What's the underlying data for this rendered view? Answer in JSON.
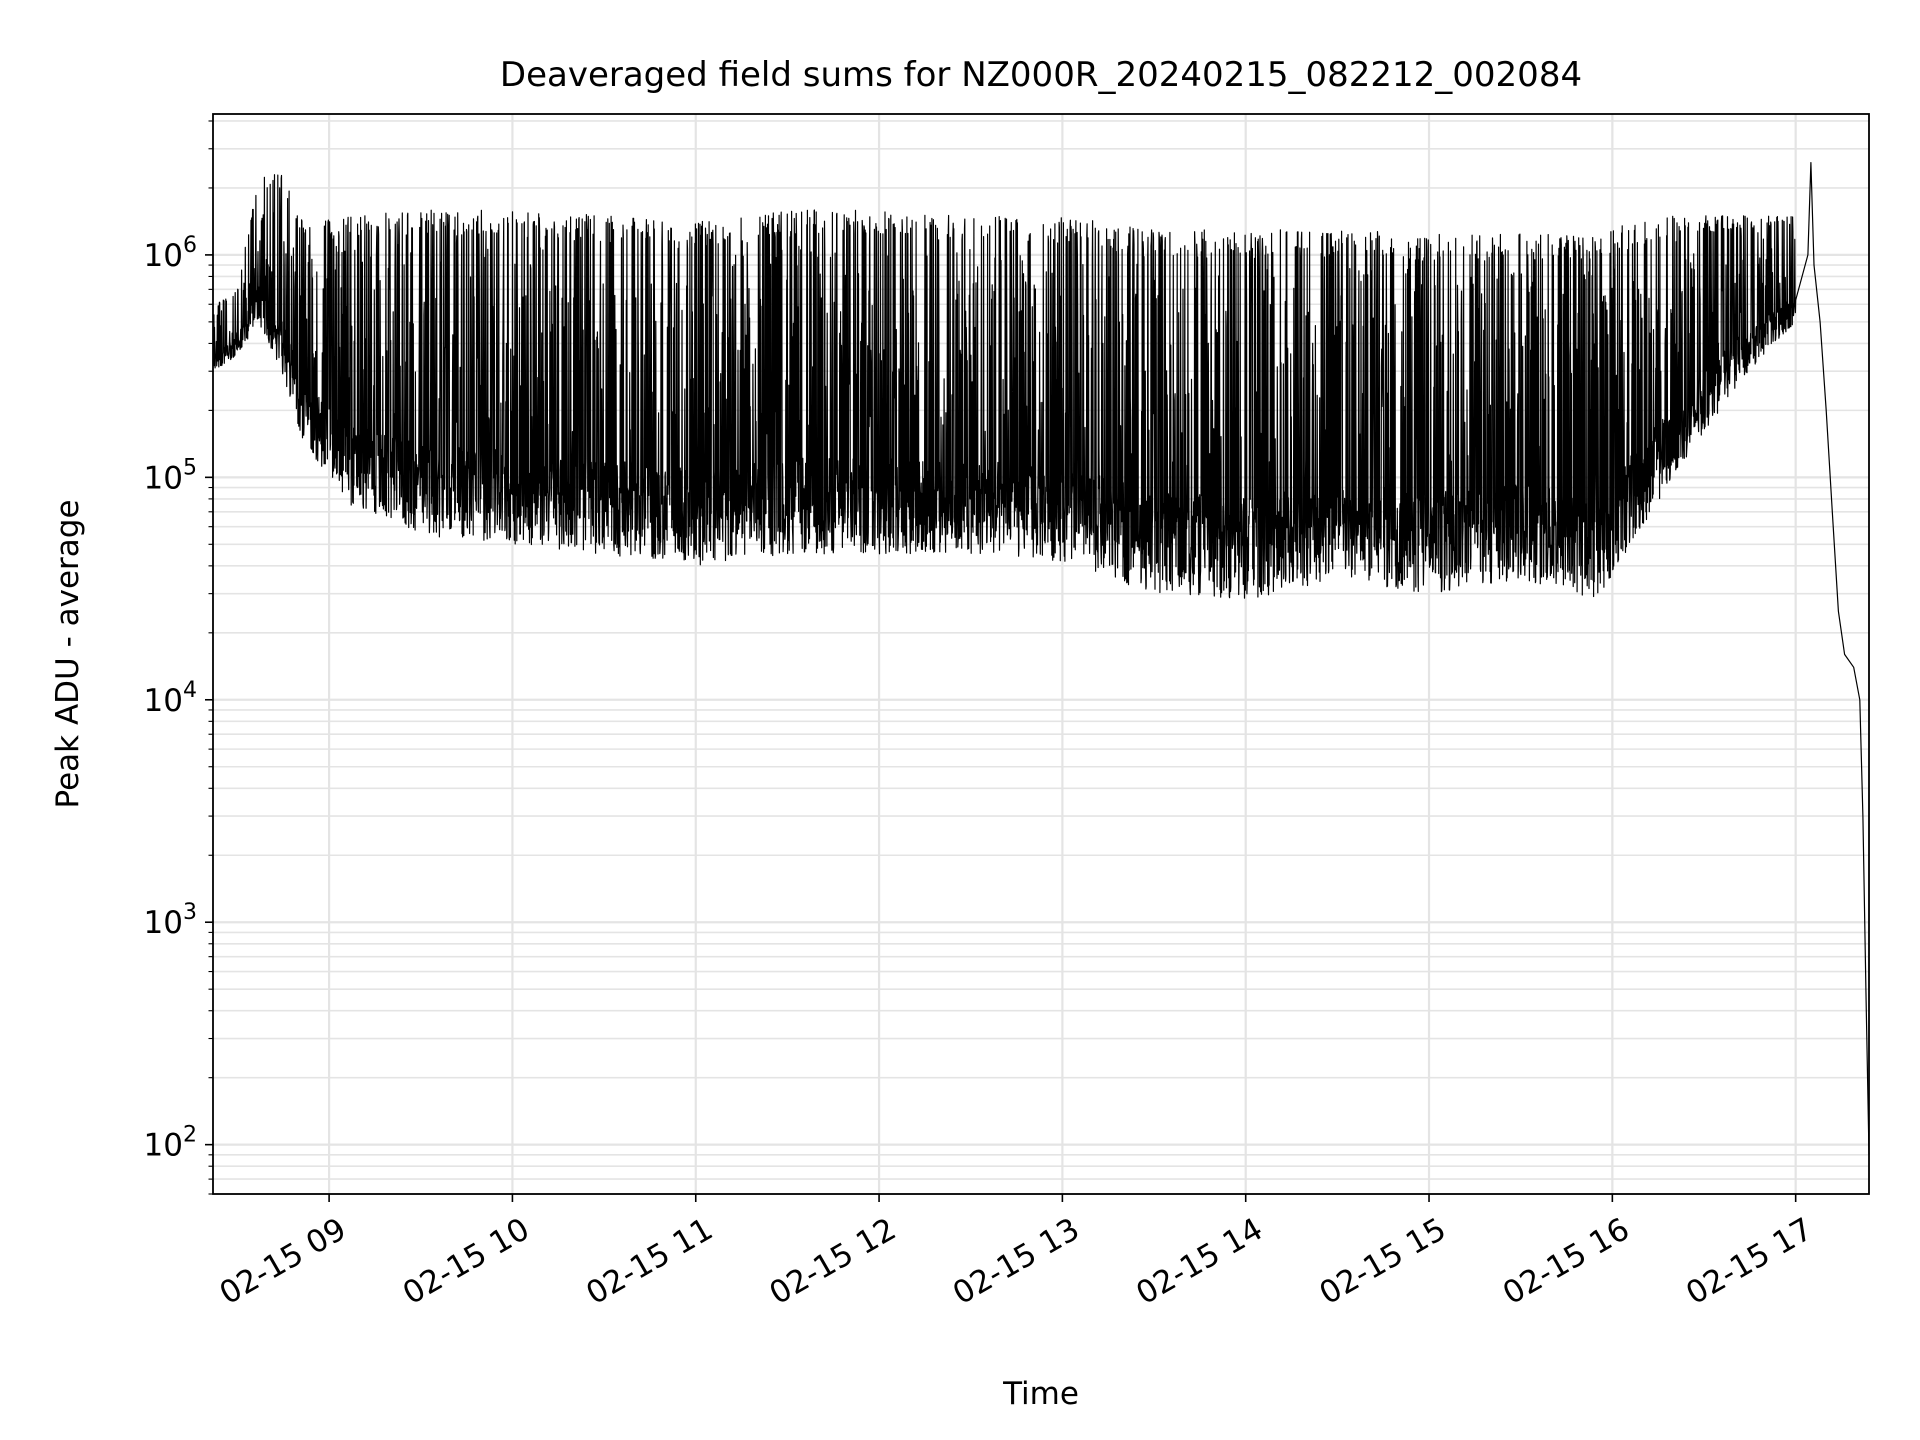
{
  "chart_data": {
    "type": "line",
    "title": "Deaveraged field sums for NZ000R_20240215_082212_002084",
    "xlabel": "Time",
    "ylabel": "Peak ADU - average",
    "yscale": "log",
    "xlim": [
      "2024-02-15T08:22",
      "2024-02-15T17:24"
    ],
    "ylim": [
      60,
      4300000
    ],
    "grid": true,
    "x_ticks": [
      {
        "t": "2024-02-15T09:00",
        "label": "02-15 09"
      },
      {
        "t": "2024-02-15T10:00",
        "label": "02-15 10"
      },
      {
        "t": "2024-02-15T11:00",
        "label": "02-15 11"
      },
      {
        "t": "2024-02-15T12:00",
        "label": "02-15 12"
      },
      {
        "t": "2024-02-15T13:00",
        "label": "02-15 13"
      },
      {
        "t": "2024-02-15T14:00",
        "label": "02-15 14"
      },
      {
        "t": "2024-02-15T15:00",
        "label": "02-15 15"
      },
      {
        "t": "2024-02-15T16:00",
        "label": "02-15 16"
      },
      {
        "t": "2024-02-15T17:00",
        "label": "02-15 17"
      }
    ],
    "y_ticks": [
      {
        "value": 100,
        "base": "10",
        "exp": "2"
      },
      {
        "value": 1000,
        "base": "10",
        "exp": "3"
      },
      {
        "value": 10000,
        "base": "10",
        "exp": "4"
      },
      {
        "value": 100000,
        "base": "10",
        "exp": "5"
      },
      {
        "value": 1000000,
        "base": "10",
        "exp": "6"
      }
    ],
    "series": [
      {
        "color": "#000000",
        "envelope": [
          {
            "t": "2024-02-15T08:22",
            "low": 300000,
            "high": 600000
          },
          {
            "t": "2024-02-15T08:30",
            "low": 350000,
            "high": 700000
          },
          {
            "t": "2024-02-15T08:37",
            "low": 500000,
            "high": 2300000
          },
          {
            "t": "2024-02-15T08:45",
            "low": 280000,
            "high": 2300000
          },
          {
            "t": "2024-02-15T08:52",
            "low": 140000,
            "high": 1400000
          },
          {
            "t": "2024-02-15T09:07",
            "low": 75000,
            "high": 1500000
          },
          {
            "t": "2024-02-15T09:30",
            "low": 55000,
            "high": 1600000
          },
          {
            "t": "2024-02-15T10:00",
            "low": 50000,
            "high": 1600000
          },
          {
            "t": "2024-02-15T10:30",
            "low": 45000,
            "high": 1500000
          },
          {
            "t": "2024-02-15T11:00",
            "low": 40000,
            "high": 1400000
          },
          {
            "t": "2024-02-15T11:30",
            "low": 45000,
            "high": 1600000
          },
          {
            "t": "2024-02-15T12:00",
            "low": 45000,
            "high": 1600000
          },
          {
            "t": "2024-02-15T12:30",
            "low": 45000,
            "high": 1500000
          },
          {
            "t": "2024-02-15T13:00",
            "low": 42000,
            "high": 1500000
          },
          {
            "t": "2024-02-15T13:30",
            "low": 30000,
            "high": 1300000
          },
          {
            "t": "2024-02-15T14:00",
            "low": 28000,
            "high": 1300000
          },
          {
            "t": "2024-02-15T14:30",
            "low": 35000,
            "high": 1300000
          },
          {
            "t": "2024-02-15T15:00",
            "low": 30000,
            "high": 1250000
          },
          {
            "t": "2024-02-15T15:30",
            "low": 35000,
            "high": 1250000
          },
          {
            "t": "2024-02-15T15:55",
            "low": 28000,
            "high": 1300000
          },
          {
            "t": "2024-02-15T16:20",
            "low": 100000,
            "high": 1500000
          },
          {
            "t": "2024-02-15T16:40",
            "low": 250000,
            "high": 1500000
          },
          {
            "t": "2024-02-15T17:00",
            "low": 500000,
            "high": 1500000
          }
        ],
        "tail": [
          {
            "t": "2024-02-15T17:04",
            "value": 1000000
          },
          {
            "t": "2024-02-15T17:05",
            "value": 2600000
          },
          {
            "t": "2024-02-15T17:06",
            "value": 900000
          },
          {
            "t": "2024-02-15T17:08",
            "value": 500000
          },
          {
            "t": "2024-02-15T17:10",
            "value": 200000
          },
          {
            "t": "2024-02-15T17:12",
            "value": 70000
          },
          {
            "t": "2024-02-15T17:14",
            "value": 25000
          },
          {
            "t": "2024-02-15T17:16",
            "value": 16000
          },
          {
            "t": "2024-02-15T17:19",
            "value": 14000
          },
          {
            "t": "2024-02-15T17:21",
            "value": 10000
          },
          {
            "t": "2024-02-15T17:22",
            "value": 3000
          },
          {
            "t": "2024-02-15T17:23",
            "value": 500
          },
          {
            "t": "2024-02-15T17:24",
            "value": 90
          }
        ]
      }
    ]
  }
}
